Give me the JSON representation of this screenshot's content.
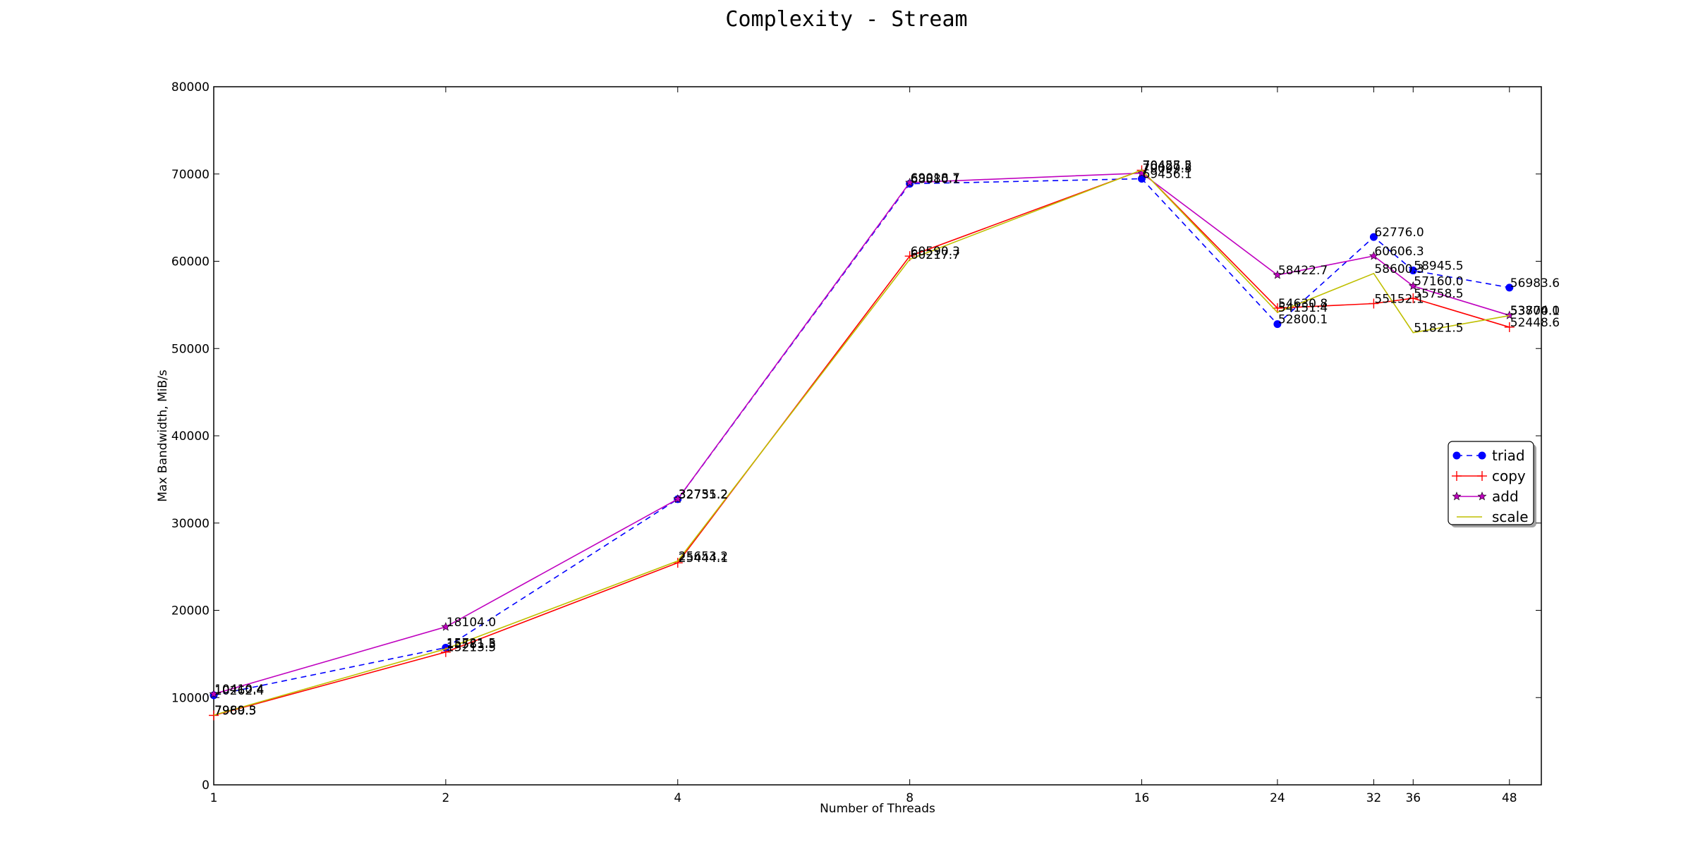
{
  "chart_data": {
    "type": "line",
    "title": "Complexity - Stream",
    "xlabel": "Number of Threads",
    "ylabel": "Max Bandwidth, MiB/s",
    "x": [
      1,
      2,
      4,
      8,
      16,
      24,
      32,
      36,
      48
    ],
    "xticks": [
      "1",
      "2",
      "4",
      "8",
      "16",
      "24",
      "32",
      "36",
      "48"
    ],
    "ylim": [
      0,
      80000
    ],
    "yticks": [
      "0",
      "10000",
      "20000",
      "30000",
      "40000",
      "50000",
      "60000",
      "70000",
      "80000"
    ],
    "grid": false,
    "legend_position": "right",
    "series": [
      {
        "name": "triad",
        "color": "#0000ff",
        "marker": "circle",
        "dashed": true,
        "values": [
          10262.4,
          15721.5,
          32735.2,
          68880.1,
          69456.1,
          52800.1,
          62776.0,
          58945.5,
          56983.6
        ],
        "labels": [
          "10262.4",
          "15721.5",
          "32735.2",
          "68880.1",
          "69456.1",
          "52800.1",
          "62776.0",
          "58945.5",
          "56983.6"
        ]
      },
      {
        "name": "copy",
        "color": "#ff0000",
        "marker": "plus",
        "dashed": false,
        "values": [
          7960.5,
          15213.5,
          25444.1,
          60590.3,
          70427.2,
          54630.8,
          55152.1,
          55758.5,
          52448.6
        ],
        "labels": [
          "7960.5",
          "15213.5",
          "25444.1",
          "60590.3",
          "70427.2",
          "54630.8",
          "55152.1",
          "55758.5",
          "52448.6"
        ]
      },
      {
        "name": "add",
        "color": "#bf00bf",
        "marker": "star",
        "dashed": false,
        "values": [
          10410.4,
          18104.0,
          32751.2,
          69018.7,
          70099.5,
          58422.7,
          60606.3,
          57160.0,
          53804.0
        ],
        "labels": [
          "10410.4",
          "18104.0",
          "32751.2",
          "69018.7",
          "70099.5",
          "58422.7",
          "60606.3",
          "57160.0",
          "53804.0"
        ]
      },
      {
        "name": "scale",
        "color": "#bfbf00",
        "marker": "none",
        "dashed": false,
        "values": [
          7989.3,
          15581.3,
          25653.2,
          60217.7,
          70455.5,
          54151.4,
          58600.3,
          51821.5,
          53770.1
        ],
        "labels": [
          "7989.3",
          "15581.3",
          "25653.2",
          "60217.7",
          "70455.5",
          "54151.4",
          "58600.3",
          "51821.5",
          "53770.1"
        ]
      }
    ]
  }
}
